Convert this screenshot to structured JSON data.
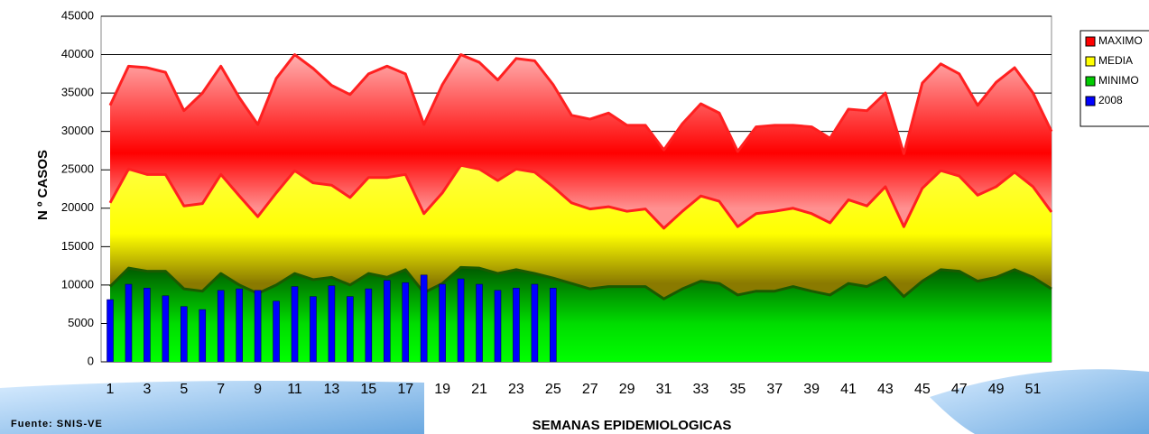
{
  "chart_data": {
    "type": "area",
    "x_axis_label": "SEMANAS EPIDEMIOLOGICAS",
    "y_axis_label": "N º CASOS",
    "source": "Fuente: SNIS-VE",
    "categories": [
      "1",
      null,
      "3",
      null,
      "5",
      null,
      "7",
      null,
      "9",
      null,
      "11",
      null,
      "13",
      null,
      "15",
      null,
      "17",
      null,
      "19",
      null,
      "21",
      null,
      "23",
      null,
      "25",
      null,
      "27",
      null,
      "29",
      null,
      "31",
      null,
      "33",
      null,
      "35",
      null,
      "37",
      null,
      "39",
      null,
      "41",
      null,
      "43",
      null,
      "45",
      null,
      "47",
      null,
      "49",
      null,
      "51",
      null
    ],
    "series": [
      {
        "name": "MAXIMO",
        "color": "#ff0000",
        "kind": "area",
        "values": [
          33400,
          38500,
          38300,
          37700,
          32700,
          35000,
          38500,
          34400,
          30900,
          36900,
          40000,
          38200,
          36000,
          34800,
          37500,
          38500,
          37500,
          30900,
          36100,
          40000,
          39000,
          36700,
          39500,
          39200,
          36100,
          32100,
          31600,
          32400,
          30800,
          30800,
          27600,
          31000,
          33600,
          32400,
          27400,
          30600,
          30800,
          30800,
          30600,
          29100,
          32900,
          32700,
          35000,
          27100,
          36300,
          38800,
          37500,
          33400,
          36400,
          38300,
          35000,
          30000
        ]
      },
      {
        "name": "MEDIA",
        "color": "#ffff00",
        "kind": "area",
        "values": [
          20700,
          25100,
          24400,
          24400,
          20300,
          20600,
          24400,
          21600,
          18900,
          22000,
          24900,
          23300,
          23000,
          21400,
          24000,
          24000,
          24400,
          19300,
          22000,
          25600,
          25100,
          23600,
          25100,
          24700,
          22800,
          20700,
          19900,
          20200,
          19600,
          19900,
          17400,
          19600,
          21600,
          20900,
          17600,
          19300,
          19600,
          20000,
          19300,
          18100,
          21100,
          20300,
          22800,
          17600,
          22600,
          24900,
          24200,
          21700,
          22800,
          24700,
          22800,
          19500
        ]
      },
      {
        "name": "MINIMO",
        "color": "#00cc00",
        "kind": "area",
        "values": [
          9800,
          12200,
          11800,
          11800,
          9500,
          9200,
          11500,
          10000,
          8900,
          10000,
          11500,
          10700,
          11000,
          10000,
          11500,
          11000,
          12000,
          9000,
          10200,
          12300,
          12200,
          11500,
          12000,
          11500,
          10900,
          10200,
          9500,
          9800,
          9800,
          9800,
          8200,
          9500,
          10500,
          10200,
          8700,
          9200,
          9200,
          9800,
          9200,
          8700,
          10200,
          9800,
          11000,
          8500,
          10500,
          12000,
          11800,
          10500,
          11000,
          12000,
          11000,
          9500
        ]
      },
      {
        "name": "2008",
        "color": "#0000ff",
        "kind": "bar",
        "values": [
          8100,
          10100,
          9600,
          8600,
          7200,
          6800,
          9300,
          9500,
          9300,
          7900,
          9800,
          8500,
          9900,
          8500,
          9500,
          10600,
          10300,
          11300,
          10100,
          10800,
          10100,
          9300,
          9600,
          10100,
          9600,
          null,
          null,
          null,
          null,
          null,
          null,
          null,
          null,
          null,
          null,
          null,
          null,
          null,
          null,
          null,
          null,
          null,
          null,
          null,
          null,
          null,
          null,
          null,
          null,
          null,
          null,
          null
        ]
      }
    ],
    "ylim": [
      0,
      45000
    ],
    "yticks": [
      0,
      5000,
      10000,
      15000,
      20000,
      25000,
      30000,
      35000,
      40000,
      45000
    ],
    "grid": true,
    "legend": "right"
  }
}
